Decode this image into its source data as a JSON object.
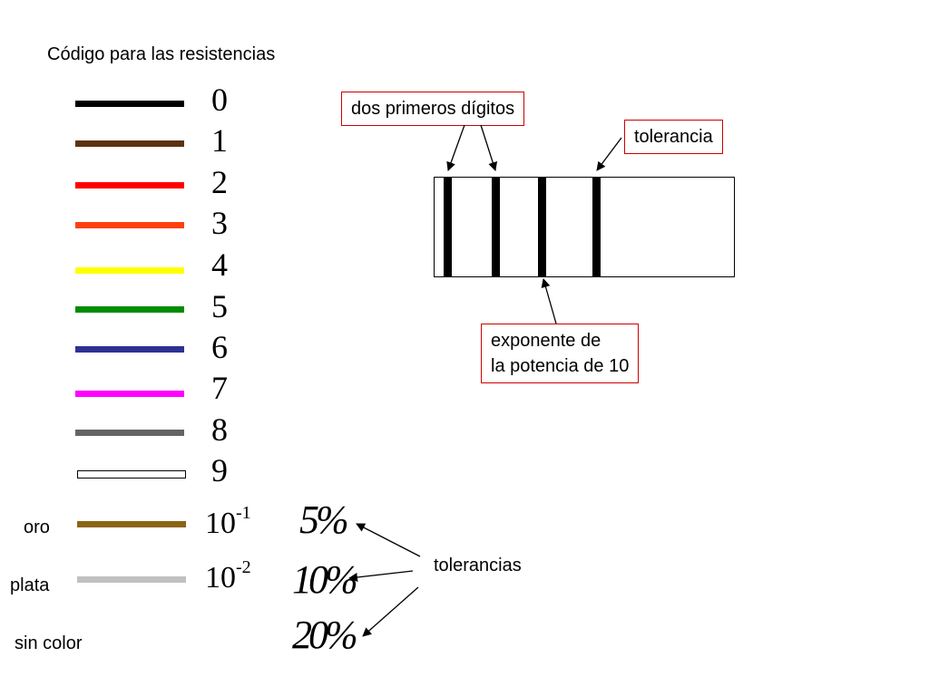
{
  "title": "Código para las resistencias",
  "color_code": [
    {
      "digit": "0",
      "color": "#000000"
    },
    {
      "digit": "1",
      "color": "#5c3310"
    },
    {
      "digit": "2",
      "color": "#ff0000"
    },
    {
      "digit": "3",
      "color": "#ff4010"
    },
    {
      "digit": "4",
      "color": "#ffff00"
    },
    {
      "digit": "5",
      "color": "#008c00"
    },
    {
      "digit": "6",
      "color": "#2e3192"
    },
    {
      "digit": "7",
      "color": "#ff00ff"
    },
    {
      "digit": "8",
      "color": "#646464"
    },
    {
      "digit": "9",
      "color": "#ffffff"
    }
  ],
  "multipliers": [
    {
      "label": "oro",
      "color": "#8c6414",
      "base": "10",
      "exp": "-1"
    },
    {
      "label": "plata",
      "color": "#c0c0c0",
      "base": "10",
      "exp": "-2"
    }
  ],
  "no_color_label": "sin color",
  "tolerances": [
    "5%",
    "10%",
    "20%"
  ],
  "tolerances_label": "tolerancias",
  "resistor": {
    "first_digits_label": "dos primeros dígitos",
    "tolerance_label": "tolerancia",
    "exponent_label_line1": "exponente de",
    "exponent_label_line2": "la potencia de 10",
    "band_color": "#000000"
  },
  "callout_border_color": "#cc0000"
}
